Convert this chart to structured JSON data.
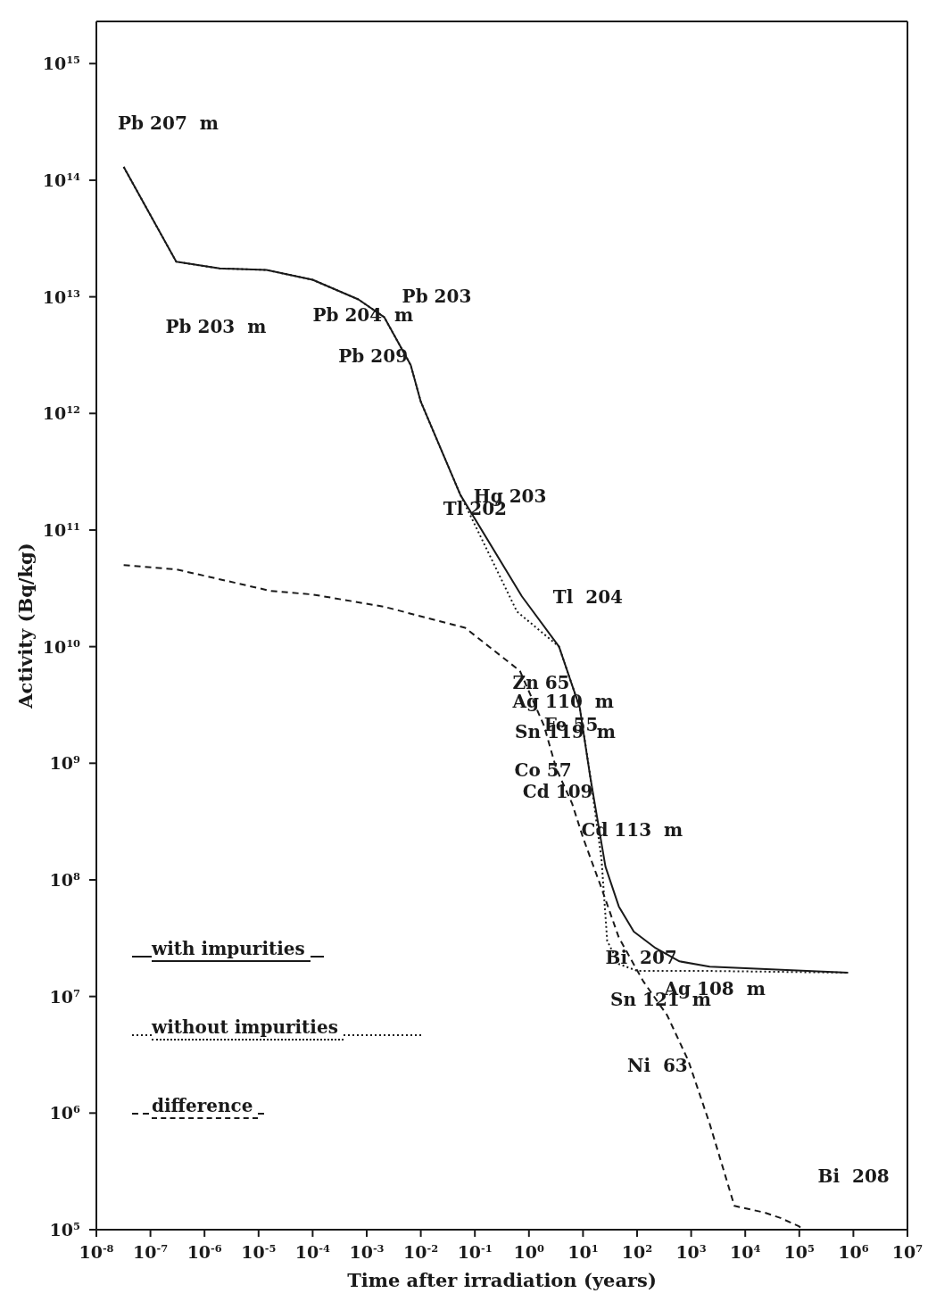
{
  "chart_data": {
    "type": "line",
    "xlabel": "Time after irradiation (years)",
    "ylabel": "Activity (Bq/kg)",
    "log": "xy",
    "xlim": [
      1e-08,
      10000000.0
    ],
    "ylim": [
      100000.0,
      2300000000000000.0
    ],
    "xticks": [
      {
        "value": 1e-08,
        "label": "10$^{-8}$"
      },
      {
        "value": 1e-07,
        "label": "10$^{-7}$"
      },
      {
        "value": 1e-06,
        "label": "10$^{-6}$"
      },
      {
        "value": 1e-05,
        "label": "10$^{-5}$"
      },
      {
        "value": 0.0001,
        "label": "10$^{-4}$"
      },
      {
        "value": 0.001,
        "label": "10$^{-3}$"
      },
      {
        "value": 0.01,
        "label": "10$^{-2}$"
      },
      {
        "value": 0.1,
        "label": "10$^{-1}$"
      },
      {
        "value": 1,
        "label": "10$^{0}$"
      },
      {
        "value": 10,
        "label": "10$^{1}$"
      },
      {
        "value": 100,
        "label": "10$^{2}$"
      },
      {
        "value": 1000,
        "label": "10$^{3}$"
      },
      {
        "value": 10000,
        "label": "10$^{4}$"
      },
      {
        "value": 100000,
        "label": "10$^{5}$"
      },
      {
        "value": 1000000,
        "label": "10$^{6}$"
      },
      {
        "value": 10000000,
        "label": "10$^{7}$"
      }
    ],
    "yticks": [
      {
        "value": 100000.0,
        "label": "10$^{5}$"
      },
      {
        "value": 1000000.0,
        "label": "10$^{6}$"
      },
      {
        "value": 10000000.0,
        "label": "10$^{7}$"
      },
      {
        "value": 100000000.0,
        "label": "10$^{8}$"
      },
      {
        "value": 1000000000.0,
        "label": "10$^{9}$"
      },
      {
        "value": 10000000000.0,
        "label": "10$^{10}$"
      },
      {
        "value": 100000000000.0,
        "label": "10$^{11}$"
      },
      {
        "value": 1000000000000.0,
        "label": "10$^{12}$"
      },
      {
        "value": 10000000000000.0,
        "label": "10$^{13}$"
      },
      {
        "value": 100000000000000.0,
        "label": "10$^{14}$"
      },
      {
        "value": 1000000000000000.0,
        "label": "10$^{15}$"
      }
    ],
    "grid": false,
    "legend": "bottom left",
    "marker": "none",
    "series": [
      {
        "name": "with impurities",
        "color": "#1a1a1a",
        "line_style": "solid",
        "x": [
          3.2e-08,
          3e-07,
          1.9e-06,
          1.4e-05,
          0.0001,
          0.0007,
          0.0021,
          0.0065,
          0.01,
          0.054,
          0.74,
          3.6,
          8.7,
          13.5,
          26,
          46,
          87,
          220,
          610,
          2200,
          800000
        ],
        "values": [
          130000000000000.0,
          20000000000000.0,
          17500000000000.0,
          17000000000000.0,
          14000000000000.0,
          9500000000000.0,
          6700000000000.0,
          2600000000000.0,
          1260000000000.0,
          200000000000.0,
          27000000000.0,
          10000000000.0,
          3000000000.0,
          780000000.0,
          130000000.0,
          59000000.0,
          36000000.0,
          26000000.0,
          20000000.0,
          18000000.0,
          16000000.0
        ]
      },
      {
        "name": "without impurities",
        "color": "#1a1a1a",
        "line_style": "dotted",
        "x": [
          3.2e-08,
          3e-07,
          1.9e-06,
          1.4e-05,
          0.0001,
          0.0007,
          0.0021,
          0.0065,
          0.01,
          0.054,
          0.6,
          3.6,
          8.7,
          13.5,
          22,
          28,
          46,
          100,
          1300,
          800000
        ],
        "values": [
          130000000000000.0,
          20000000000000.0,
          17500000000000.0,
          17000000000000.0,
          14000000000000.0,
          9500000000000.0,
          6700000000000.0,
          2600000000000.0,
          1260000000000.0,
          200000000000.0,
          20000000000.0,
          10000000000.0,
          3000000000.0,
          800000000.0,
          150000000.0,
          30000000.0,
          19000000.0,
          16600000.0,
          16600000.0,
          16000000.0
        ]
      },
      {
        "name": "difference",
        "color": "#1a1a1a",
        "line_style": "dashed",
        "x": [
          3.2e-08,
          3e-07,
          1.7e-05,
          0.0001,
          0.0021,
          0.066,
          0.68,
          1.9,
          3.2,
          6.3,
          10,
          21,
          46,
          130,
          360,
          890,
          2200,
          6300,
          23000,
          45000,
          98000,
          120000
        ],
        "values": [
          50000000000.0,
          46000000000.0,
          30000000000.0,
          28000000000.0,
          22000000000.0,
          14500000000.0,
          6200000000.0,
          2100000000.0,
          900000000.0,
          450000000.0,
          230000000.0,
          90000000.0,
          32000000.0,
          13500000.0,
          6900000.0,
          2800000.0,
          810000.0,
          160000.0,
          140000.0,
          126000.0,
          107000.0,
          100000.0
        ]
      }
    ],
    "annotations": [
      "Pb 207  m",
      "Pb 203  m",
      "Pb 204  m",
      "Pb 203",
      "Pb 209",
      "Hg 203",
      "Tl 202",
      "Tl  204",
      "Zn 65",
      "Ag 110  m",
      "Fe 55",
      "Sn 119  m",
      "Co 57",
      "Cd 109",
      "Cd 113  m",
      "Bi  207",
      "Ag 108  m",
      "Sn 121  m",
      "Ni  63",
      "Bi  208"
    ]
  }
}
